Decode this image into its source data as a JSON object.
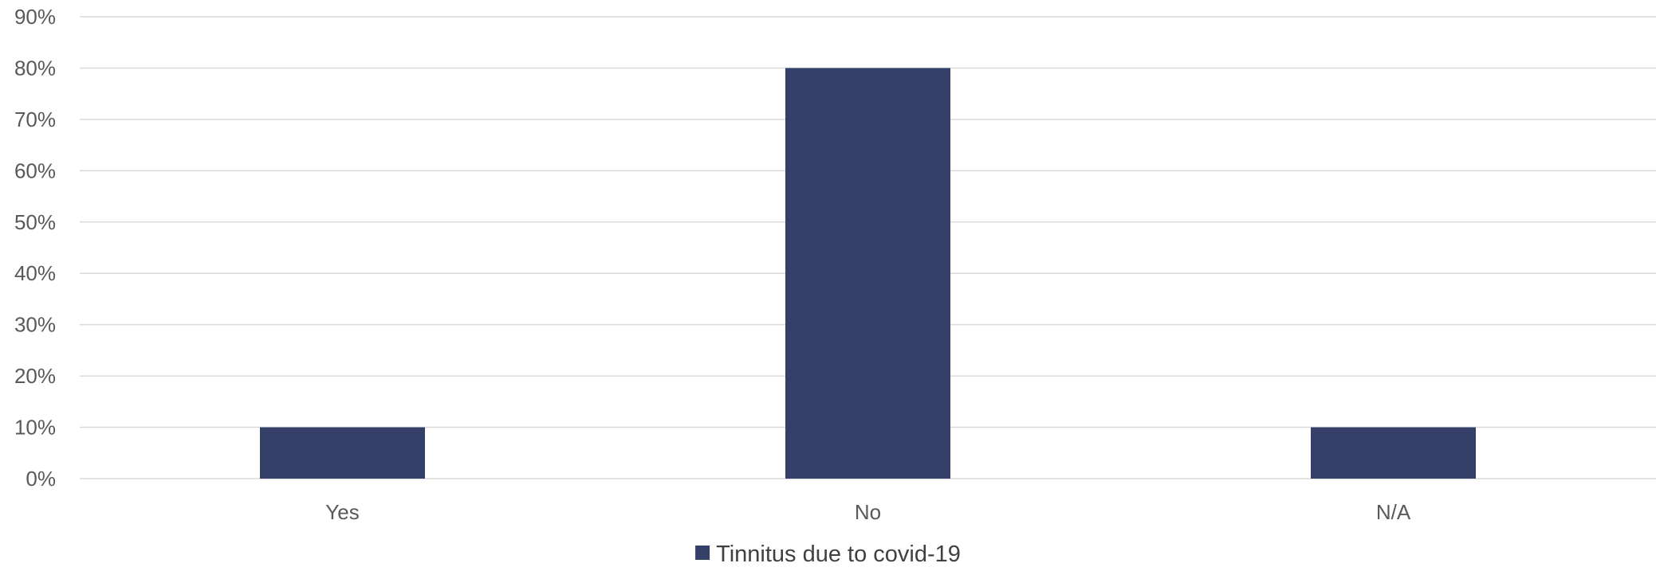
{
  "chart_data": {
    "type": "bar",
    "title": "",
    "xlabel": "",
    "ylabel": "",
    "categories": [
      "Yes",
      "No",
      "N/A"
    ],
    "series": [
      {
        "name": "Tinnitus due to covid-19",
        "values": [
          10,
          80,
          10
        ],
        "color": "#344068"
      }
    ],
    "ylim": [
      0,
      90
    ],
    "y_ticks": [
      0,
      10,
      20,
      30,
      40,
      50,
      60,
      70,
      80,
      90
    ],
    "y_tick_format": "percent",
    "grid": true,
    "legend_position": "bottom-center"
  },
  "colors": {
    "bar": "#344068",
    "grid": "#d9d9d9",
    "tick_text": "#595959",
    "legend_text": "#404040"
  }
}
